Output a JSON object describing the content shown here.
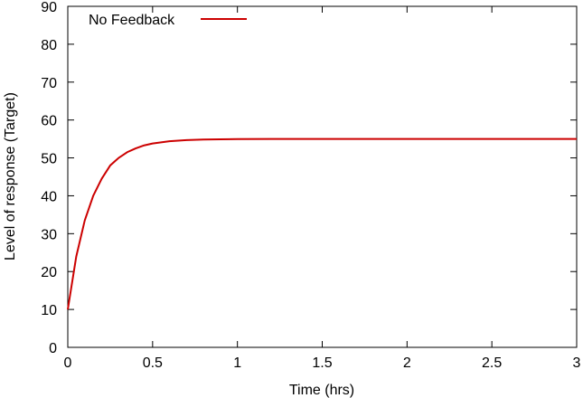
{
  "chart_data": {
    "type": "line",
    "title": "",
    "xlabel": "Time (hrs)",
    "ylabel": "Level of response (Target)",
    "xlim": [
      0,
      3
    ],
    "ylim": [
      0,
      90
    ],
    "xticks": [
      "0",
      "0.5",
      "1",
      "1.5",
      "2",
      "2.5",
      "3"
    ],
    "yticks": [
      "0",
      "10",
      "20",
      "30",
      "40",
      "50",
      "60",
      "70",
      "80",
      "90"
    ],
    "grid": false,
    "legend_position": "top-left",
    "series": [
      {
        "name": "No Feedback",
        "color": "#cc0000",
        "x": [
          0,
          0.05,
          0.1,
          0.15,
          0.2,
          0.25,
          0.3,
          0.35,
          0.4,
          0.45,
          0.5,
          0.6,
          0.7,
          0.8,
          0.9,
          1.0,
          1.2,
          1.5,
          2.0,
          2.5,
          3.0
        ],
        "y": [
          10,
          24,
          33.5,
          40,
          44.5,
          48,
          50,
          51.5,
          52.5,
          53.3,
          53.8,
          54.4,
          54.7,
          54.85,
          54.92,
          54.96,
          54.99,
          55,
          55,
          55,
          55
        ]
      }
    ]
  }
}
